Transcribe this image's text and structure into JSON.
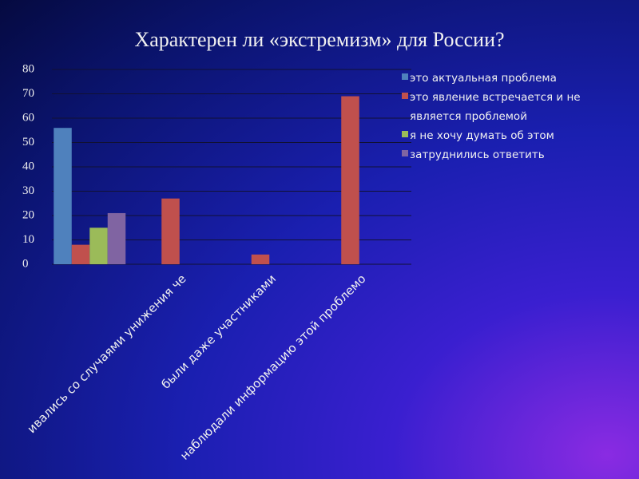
{
  "chart_data": {
    "type": "bar",
    "title": "Характерен ли «экстремизм» для России?",
    "categories": [
      null,
      "ивались со случаями унижения че",
      "были даже участниками",
      "наблюдали информацию этой проблемо"
    ],
    "series": [
      {
        "name": "это актуальная проблема",
        "color": "#4f81bd",
        "values": [
          56,
          0,
          0,
          0
        ]
      },
      {
        "name": "это явление встречается и не является проблемой",
        "color": "#c0504d",
        "values": [
          8,
          27,
          4,
          69
        ]
      },
      {
        "name": "я не хочу думать об этом",
        "color": "#9bbb59",
        "values": [
          15,
          0,
          0,
          0
        ]
      },
      {
        "name": "затруднились ответить",
        "color": "#8064a2",
        "values": [
          21,
          0,
          0,
          0
        ]
      }
    ],
    "ylim": [
      0,
      80
    ],
    "yticks": [
      0,
      10,
      20,
      30,
      40,
      50,
      60,
      70,
      80
    ],
    "grid": true,
    "legend": "right"
  }
}
